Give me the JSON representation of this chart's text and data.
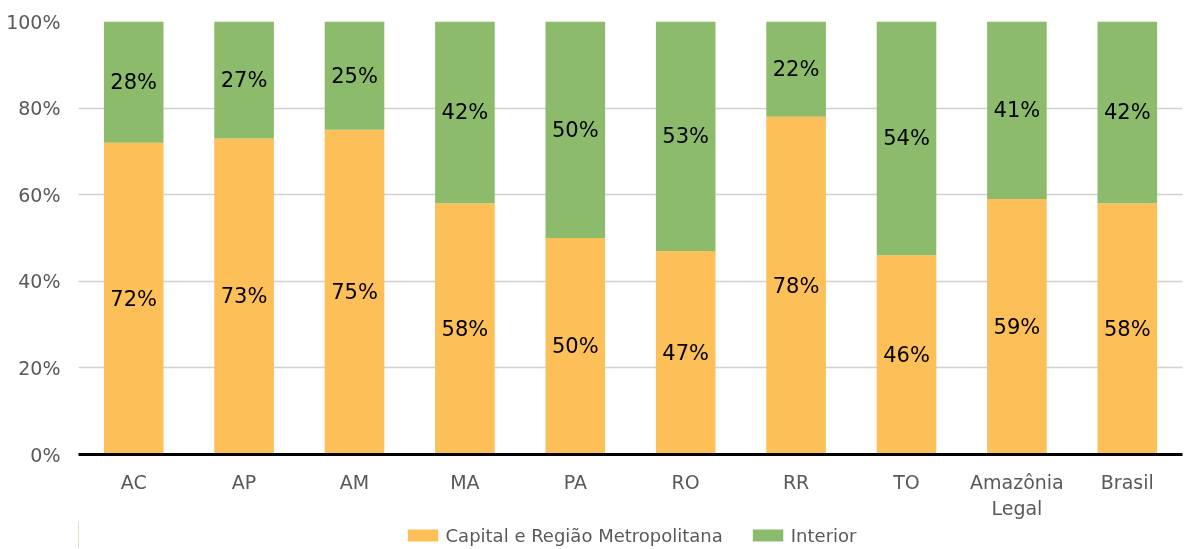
{
  "chart_data": {
    "type": "bar",
    "stacked": true,
    "categories": [
      "AC",
      "AP",
      "AM",
      "MA",
      "PA",
      "RO",
      "RR",
      "TO",
      "Amazônia Legal",
      "Brasil"
    ],
    "series": [
      {
        "name": "Capital e Região Metropolitana",
        "color": "#fdbf58",
        "values": [
          72,
          73,
          75,
          58,
          50,
          47,
          78,
          46,
          59,
          58
        ],
        "value_labels": [
          "72%",
          "73%",
          "75%",
          "58%",
          "50%",
          "47%",
          "78%",
          "46%",
          "59%",
          "58%"
        ]
      },
      {
        "name": "Interior",
        "color": "#8cbb6c",
        "values": [
          28,
          27,
          25,
          42,
          50,
          53,
          22,
          54,
          41,
          42
        ],
        "value_labels": [
          "28%",
          "27%",
          "25%",
          "42%",
          "50%",
          "53%",
          "22%",
          "54%",
          "41%",
          "42%"
        ]
      }
    ],
    "ylim": [
      0,
      100
    ],
    "yticks": [
      {
        "value": 0,
        "label": "0%"
      },
      {
        "value": 20,
        "label": "20%"
      },
      {
        "value": 40,
        "label": "40%"
      },
      {
        "value": 60,
        "label": "60%"
      },
      {
        "value": 80,
        "label": "80%"
      },
      {
        "value": 100,
        "label": "100%"
      }
    ],
    "grid": "y",
    "legend": "bottom"
  }
}
